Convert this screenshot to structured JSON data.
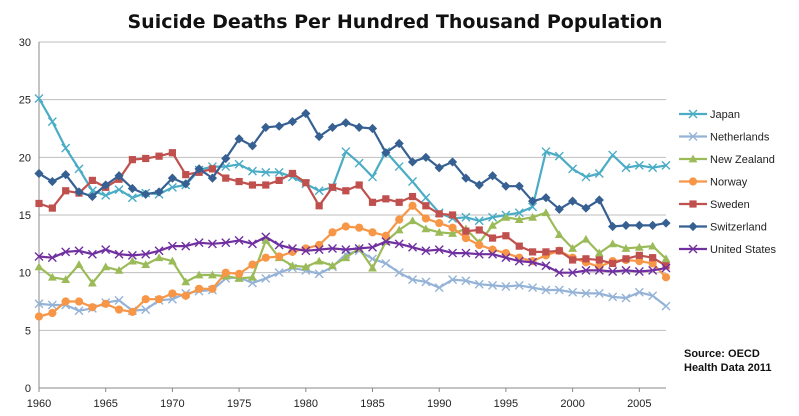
{
  "chart_data": {
    "type": "line",
    "title": "Suicide Deaths Per Hundred Thousand Population",
    "xlabel": "",
    "ylabel": "",
    "xlim": [
      1960,
      2007
    ],
    "ylim": [
      0,
      30
    ],
    "x_ticks": [
      1960,
      1965,
      1970,
      1975,
      1980,
      1985,
      1990,
      1995,
      2000,
      2005
    ],
    "y_ticks": [
      0,
      5,
      10,
      15,
      20,
      25,
      30
    ],
    "grid": "horizontal",
    "legend_position": "right",
    "annotation": [
      "Source: OECD",
      "Health Data 2011"
    ],
    "series": [
      {
        "name": "Japan",
        "color": "#4BACC6",
        "marker": "x",
        "start": 1960,
        "end": 2007,
        "values": [
          25.1,
          23.1,
          20.8,
          19.0,
          17.1,
          16.7,
          17.2,
          16.5,
          16.9,
          16.8,
          17.4,
          17.6,
          18.9,
          19.2,
          19.2,
          19.4,
          18.8,
          18.7,
          18.7,
          18.3,
          17.7,
          17.1,
          17.4,
          20.5,
          19.5,
          18.3,
          20.5,
          19.2,
          17.9,
          16.5,
          15.2,
          14.7,
          14.8,
          14.5,
          14.8,
          15.0,
          15.2,
          15.7,
          20.5,
          20.1,
          19.0,
          18.3,
          18.6,
          20.2,
          19.1,
          19.3,
          19.1,
          19.3
        ]
      },
      {
        "name": "Netherlands",
        "color": "#95B3D7",
        "marker": "x",
        "start": 1960,
        "end": 2007,
        "values": [
          7.3,
          7.2,
          7.2,
          6.7,
          6.9,
          7.4,
          7.6,
          6.7,
          6.8,
          7.6,
          7.7,
          8.2,
          8.4,
          8.5,
          9.5,
          9.6,
          9.1,
          9.5,
          10.0,
          10.4,
          10.2,
          9.9,
          10.5,
          11.6,
          11.9,
          11.2,
          10.8,
          10.0,
          9.4,
          9.2,
          8.7,
          9.4,
          9.3,
          9.0,
          8.9,
          8.8,
          8.9,
          8.7,
          8.5,
          8.5,
          8.3,
          8.2,
          8.2,
          7.9,
          7.8,
          8.3,
          8.0,
          7.1
        ]
      },
      {
        "name": "New Zealand",
        "color": "#9BBB59",
        "marker": "triangle",
        "start": 1960,
        "end": 2007,
        "values": [
          10.5,
          9.6,
          9.4,
          10.7,
          9.1,
          10.5,
          10.2,
          11.0,
          10.7,
          11.3,
          11.0,
          9.2,
          9.8,
          9.8,
          9.7,
          9.5,
          9.6,
          12.8,
          11.3,
          10.6,
          10.5,
          11.0,
          10.6,
          11.3,
          12.1,
          10.4,
          12.7,
          13.7,
          14.5,
          13.8,
          13.5,
          13.4,
          13.8,
          12.6,
          14.1,
          14.8,
          14.6,
          14.8,
          15.2,
          13.3,
          12.1,
          12.9,
          11.7,
          12.5,
          12.1,
          12.2,
          12.3,
          11.2
        ]
      },
      {
        "name": "Norway",
        "color": "#F79646",
        "marker": "circle",
        "start": 1960,
        "end": 2007,
        "values": [
          6.2,
          6.5,
          7.5,
          7.5,
          7.0,
          7.3,
          6.8,
          6.6,
          7.7,
          7.7,
          8.2,
          8.0,
          8.6,
          8.6,
          10.0,
          9.9,
          10.7,
          11.3,
          11.4,
          11.8,
          12.1,
          12.4,
          13.5,
          14.0,
          13.9,
          13.5,
          13.2,
          14.6,
          15.8,
          14.7,
          14.3,
          13.9,
          13.0,
          12.4,
          12.0,
          11.7,
          11.3,
          11.0,
          11.5,
          11.9,
          11.3,
          10.9,
          10.5,
          11.0,
          11.1,
          11.0,
          10.8,
          9.6
        ]
      },
      {
        "name": "Sweden",
        "color": "#C0504D",
        "marker": "square",
        "start": 1960,
        "end": 2007,
        "values": [
          16.0,
          15.6,
          17.1,
          16.9,
          18.0,
          17.4,
          18.1,
          19.8,
          19.9,
          20.1,
          20.4,
          18.5,
          18.7,
          19.0,
          18.2,
          17.9,
          17.6,
          17.6,
          18.0,
          18.6,
          17.8,
          15.8,
          17.4,
          17.1,
          17.6,
          16.1,
          16.4,
          16.1,
          16.6,
          15.8,
          15.1,
          15.0,
          13.6,
          13.7,
          13.0,
          13.2,
          12.3,
          11.8,
          11.8,
          11.9,
          11.1,
          11.2,
          11.1,
          10.8,
          11.2,
          11.5,
          11.3,
          10.6
        ]
      },
      {
        "name": "Switzerland",
        "color": "#366092",
        "marker": "diamond",
        "start": 1960,
        "end": 2007,
        "values": [
          18.6,
          17.9,
          18.5,
          17.0,
          16.6,
          17.6,
          18.4,
          17.3,
          16.8,
          17.0,
          18.2,
          17.7,
          19.0,
          18.2,
          19.9,
          21.6,
          21.0,
          22.6,
          22.7,
          23.1,
          23.8,
          21.8,
          22.6,
          23.0,
          22.6,
          22.5,
          20.4,
          21.2,
          19.6,
          20.0,
          19.1,
          19.6,
          18.2,
          17.6,
          18.4,
          17.5,
          17.5,
          16.2,
          16.5,
          15.5,
          16.2,
          15.6,
          16.3,
          14.0,
          14.1,
          14.1,
          14.1,
          14.3
        ]
      },
      {
        "name": "United States",
        "color": "#7030A0",
        "marker": "x",
        "start": 1960,
        "end": 2007,
        "values": [
          11.4,
          11.3,
          11.8,
          11.9,
          11.6,
          12.0,
          11.6,
          11.5,
          11.6,
          11.9,
          12.3,
          12.3,
          12.6,
          12.5,
          12.6,
          12.8,
          12.5,
          13.1,
          12.4,
          12.1,
          11.9,
          12.0,
          12.1,
          12.0,
          12.1,
          12.2,
          12.7,
          12.5,
          12.2,
          11.9,
          12.0,
          11.7,
          11.7,
          11.6,
          11.6,
          11.3,
          11.0,
          10.9,
          10.6,
          10.0,
          10.0,
          10.2,
          10.2,
          10.1,
          10.2,
          10.1,
          10.2,
          10.4
        ]
      }
    ]
  }
}
